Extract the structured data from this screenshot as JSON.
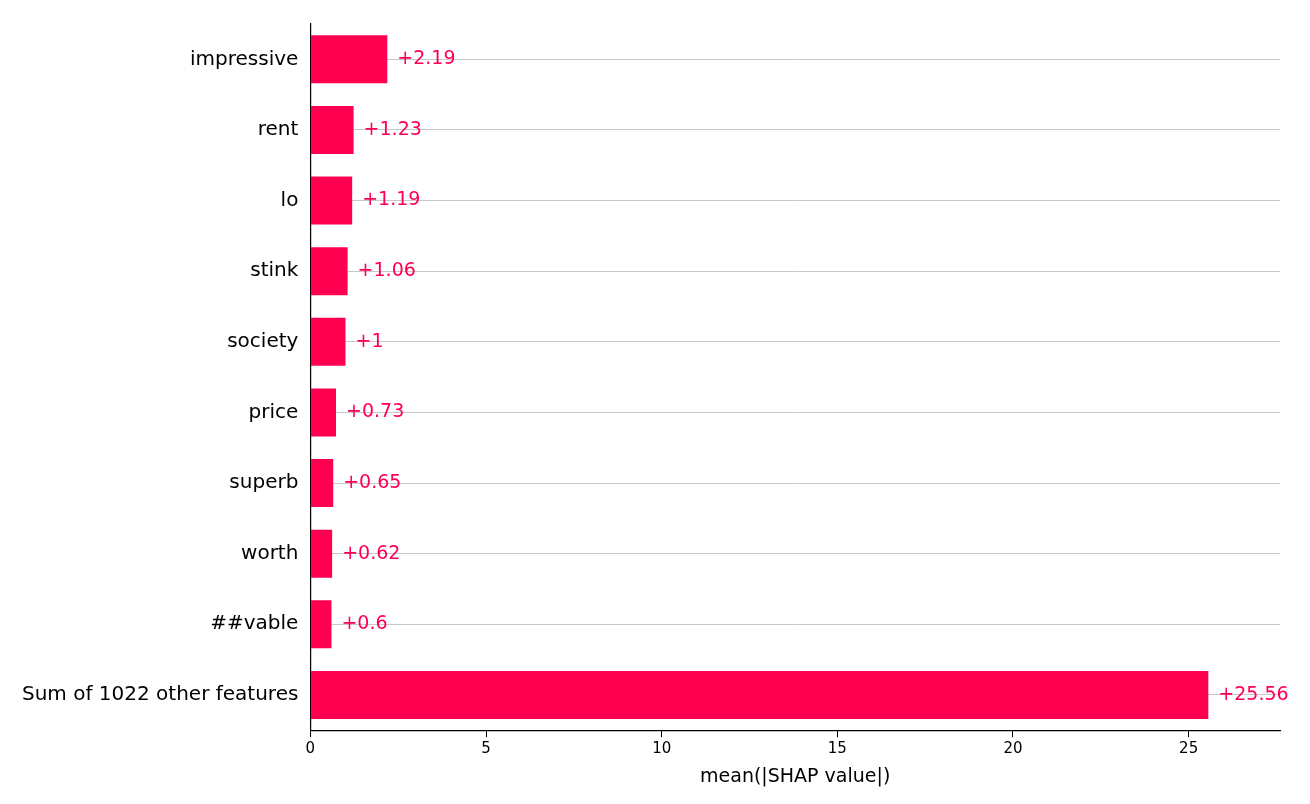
{
  "chart_data": {
    "type": "bar",
    "orientation": "horizontal",
    "x_label": "mean(|SHAP value|)",
    "categories": [
      "impressive",
      "rent",
      "lo",
      "stink",
      "society",
      "price",
      "superb",
      "worth",
      "##vable",
      "Sum of 1022 other features"
    ],
    "values": [
      2.19,
      1.23,
      1.19,
      1.06,
      1,
      0.73,
      0.65,
      0.62,
      0.6,
      25.56
    ],
    "value_labels": [
      "+2.19",
      "+1.23",
      "+1.19",
      "+1.06",
      "+1",
      "+0.73",
      "+0.65",
      "+0.62",
      "+0.6",
      "+25.56"
    ],
    "data_labels": true,
    "color": "#ff0051",
    "xlim": [
      0,
      27.6
    ],
    "xticks": [
      0,
      5,
      10,
      15,
      20,
      25
    ],
    "grid": true
  }
}
